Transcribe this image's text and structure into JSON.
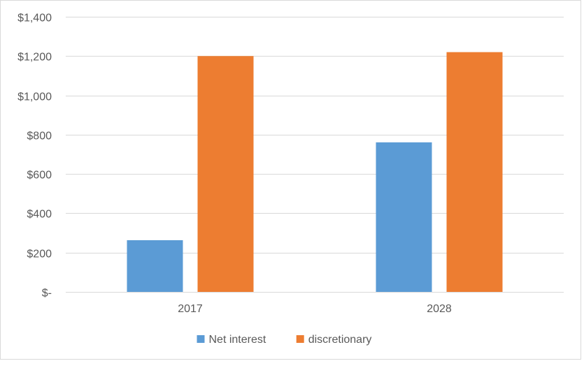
{
  "chart_data": {
    "type": "bar",
    "title": "",
    "xlabel": "",
    "ylabel": "",
    "categories": [
      "2017",
      "2028"
    ],
    "series": [
      {
        "name": "Net interest",
        "color": "#5B9BD5",
        "values": [
          263,
          761
        ]
      },
      {
        "name": "discretionary",
        "color": "#ED7D31",
        "values": [
          1200,
          1220
        ]
      }
    ],
    "ylim": [
      0,
      1400
    ],
    "yticks": [
      0,
      200,
      400,
      600,
      800,
      1000,
      1200,
      1400
    ],
    "ytick_labels": [
      "$-",
      "$200",
      "$400",
      "$600",
      "$800",
      "$1,000",
      "$1,200",
      "$1,400"
    ],
    "grid": true,
    "legend_position": "bottom"
  }
}
